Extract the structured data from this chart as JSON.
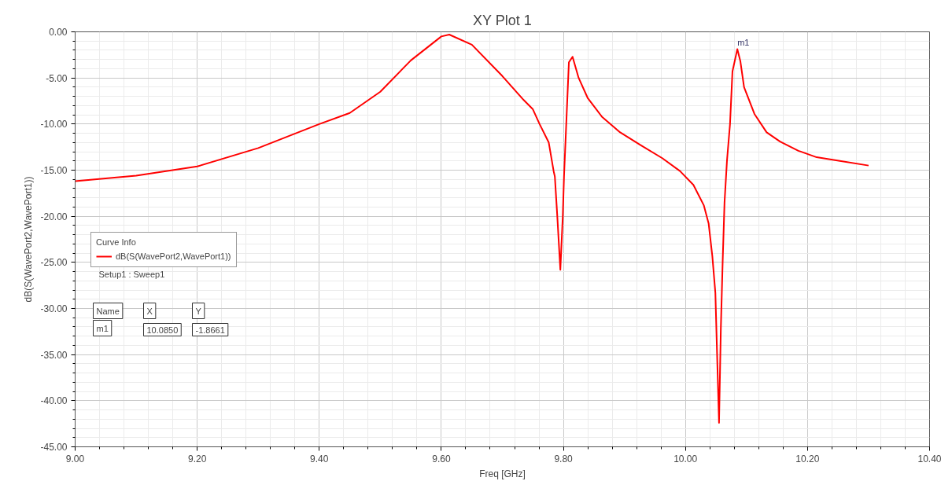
{
  "chart_data": {
    "type": "line",
    "title": "XY Plot 1",
    "xlabel": "Freq [GHz]",
    "ylabel": "dB(S(WavePort2,WavePort1))",
    "legend_title": "Curve Info",
    "x": [
      9.0,
      9.1,
      9.2,
      9.3,
      9.4,
      9.45,
      9.5,
      9.55,
      9.6,
      9.613,
      9.65,
      9.7,
      9.735,
      9.75,
      9.761,
      9.776,
      9.784,
      9.786,
      9.79,
      9.795,
      9.799,
      9.801,
      9.809,
      9.815,
      9.825,
      9.84,
      9.863,
      9.893,
      9.927,
      9.962,
      9.991,
      10.013,
      10.03,
      10.038,
      10.044,
      10.049,
      10.052,
      10.055,
      10.058,
      10.061,
      10.064,
      10.068,
      10.073,
      10.077,
      10.085,
      10.09,
      10.096,
      10.113,
      10.133,
      10.155,
      10.185,
      10.215,
      10.253,
      10.3
    ],
    "series": [
      {
        "name": "dB(S(WavePort2,WavePort1))",
        "color": "#ff0000",
        "values": [
          -16.2,
          -15.6,
          -14.6,
          -12.6,
          -10.0,
          -8.8,
          -6.5,
          -3.1,
          -0.5,
          -0.3,
          -1.4,
          -4.8,
          -7.4,
          -8.4,
          -10.0,
          -12.0,
          -15.1,
          -15.7,
          -20.0,
          -25.8,
          -20.0,
          -15.7,
          -3.3,
          -2.7,
          -5.0,
          -7.2,
          -9.2,
          -10.9,
          -12.3,
          -13.7,
          -15.1,
          -16.6,
          -18.8,
          -20.8,
          -24.3,
          -28.3,
          -35.4,
          -42.4,
          -32.1,
          -24.8,
          -18.5,
          -14.0,
          -10.0,
          -4.3,
          -1.8661,
          -3.2,
          -6.0,
          -8.9,
          -10.9,
          -11.9,
          -12.9,
          -13.6,
          -14.0,
          -14.5
        ]
      }
    ],
    "xlim": [
      9.0,
      10.4
    ],
    "xticks": [
      {
        "value": 9.0,
        "label": "9.00"
      },
      {
        "value": 9.2,
        "label": "9.20"
      },
      {
        "value": 9.4,
        "label": "9.40"
      },
      {
        "value": 9.6,
        "label": "9.60"
      },
      {
        "value": 9.8,
        "label": "9.80"
      },
      {
        "value": 10.0,
        "label": "10.00"
      },
      {
        "value": 10.2,
        "label": "10.20"
      },
      {
        "value": 10.4,
        "label": "10.40"
      }
    ],
    "ylim": [
      -45,
      0
    ],
    "yticks": [
      {
        "value": 0,
        "label": "0.00"
      },
      {
        "value": -5,
        "label": "-5.00"
      },
      {
        "value": -10,
        "label": "-10.00"
      },
      {
        "value": -15,
        "label": "-15.00"
      },
      {
        "value": -20,
        "label": "-20.00"
      },
      {
        "value": -25,
        "label": "-25.00"
      },
      {
        "value": -30,
        "label": "-30.00"
      },
      {
        "value": -35,
        "label": "-35.00"
      },
      {
        "value": -40,
        "label": "-40.00"
      },
      {
        "value": -45,
        "label": "-45.00"
      }
    ],
    "annotations": [
      {
        "text": "m1",
        "x": 10.085,
        "y": -1.8661
      },
      "Setup1 : Sweep1",
      "Name",
      "X",
      "Y",
      "m1",
      "10.0850",
      "-1.8661"
    ],
    "grid": true,
    "legend": "left",
    "marker": "none",
    "line_style": "solid"
  }
}
